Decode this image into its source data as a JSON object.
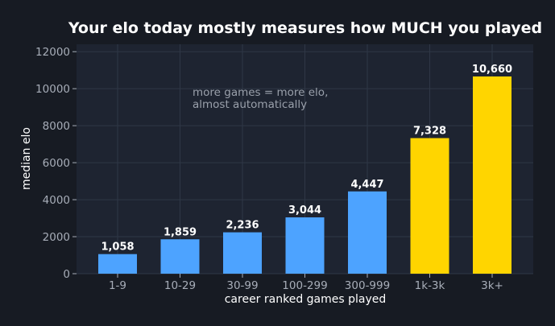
{
  "chart_data": {
    "type": "bar",
    "title": "Your elo today mostly measures how MUCH you played",
    "xlabel": "career ranked games played",
    "ylabel": "median elo",
    "categories": [
      "1-9",
      "10-29",
      "30-99",
      "100-299",
      "300-999",
      "1k-3k",
      "3k+"
    ],
    "values": [
      1058,
      1859,
      2236,
      3044,
      4447,
      7328,
      10660
    ],
    "value_labels": [
      "1,058",
      "1,859",
      "2,236",
      "3,044",
      "4,447",
      "7,328",
      "10,660"
    ],
    "ylim": [
      0,
      12400
    ],
    "yticks": [
      0,
      2000,
      4000,
      6000,
      8000,
      10000,
      12000
    ],
    "grid": true,
    "annotation": [
      "more games = more elo,",
      "almost automatically"
    ],
    "colors": {
      "background": "#171b23",
      "plot_background": "#1e2431",
      "bar_default": "#4da3ff",
      "bar_highlight": "#ffd500",
      "highlighted_categories": [
        "1k-3k",
        "3k+"
      ]
    }
  }
}
